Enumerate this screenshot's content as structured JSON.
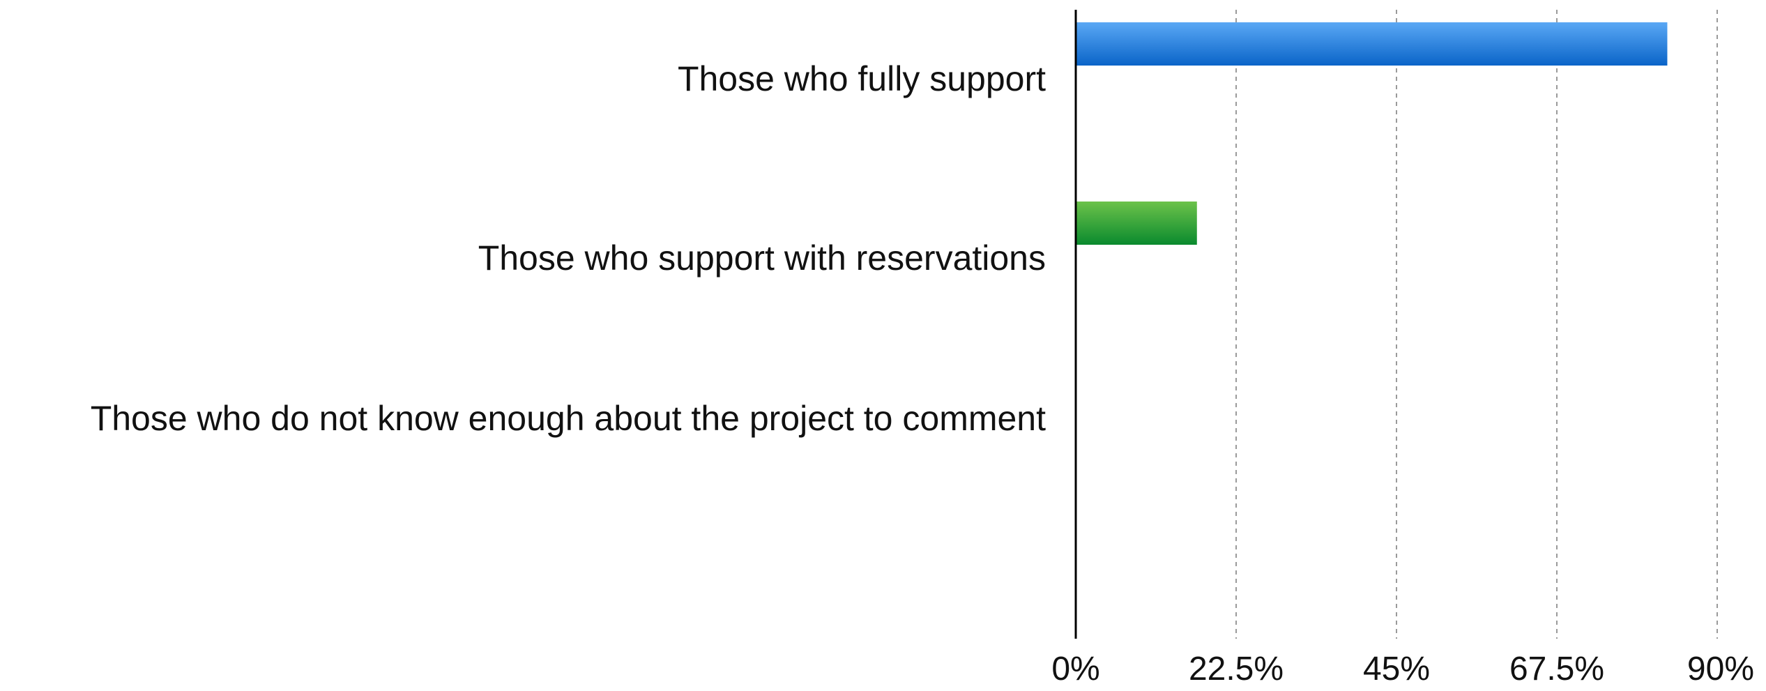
{
  "chart_data": {
    "type": "bar",
    "orientation": "horizontal",
    "categories": [
      "Those who fully support",
      "Those who support with reservations",
      "Those who do not know enough about the project to comment"
    ],
    "values": [
      83,
      17,
      0
    ],
    "value_unit": "%",
    "xlim": [
      0,
      90
    ],
    "x_ticks": [
      0,
      22.5,
      45,
      67.5,
      90
    ],
    "x_tick_labels": [
      "0%",
      "22.5%",
      "45%",
      "67.5%",
      "90%"
    ],
    "grid": "vertical-dashed",
    "legend": "none",
    "colors": [
      "#2f86e8",
      "#3aaa35",
      "#cccccc"
    ],
    "title": "",
    "xlabel": "",
    "ylabel": ""
  }
}
